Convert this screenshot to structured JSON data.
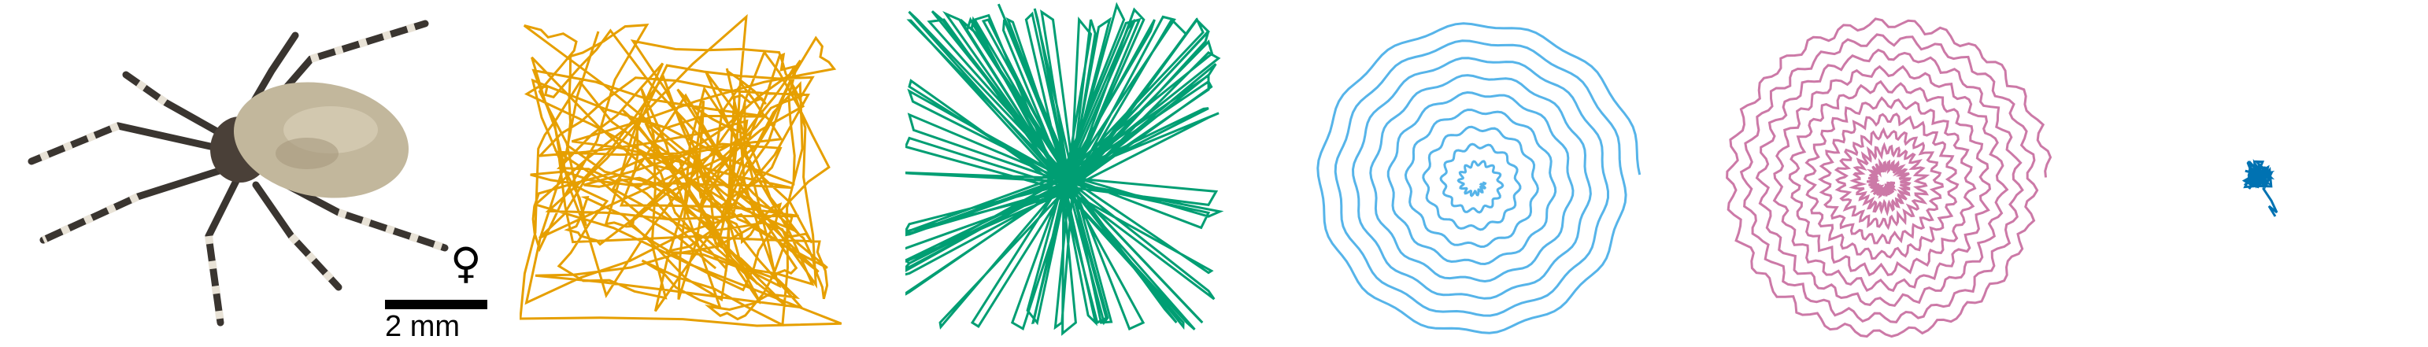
{
  "scale_bar": {
    "label": "2 mm"
  },
  "sex_symbol": "♀",
  "trajectory_colors": [
    "#e69f00",
    "#009e73",
    "#56b4e9",
    "#cc79a7",
    "#0072b2"
  ],
  "panels": [
    {
      "pattern": "random-crossing",
      "color": "#e69f00"
    },
    {
      "pattern": "radial-star",
      "color": "#009e73"
    },
    {
      "pattern": "spiral",
      "color": "#56b4e9"
    },
    {
      "pattern": "wiggly-spiral",
      "color": "#cc79a7"
    },
    {
      "pattern": "small-tangle",
      "color": "#0072b2"
    }
  ]
}
